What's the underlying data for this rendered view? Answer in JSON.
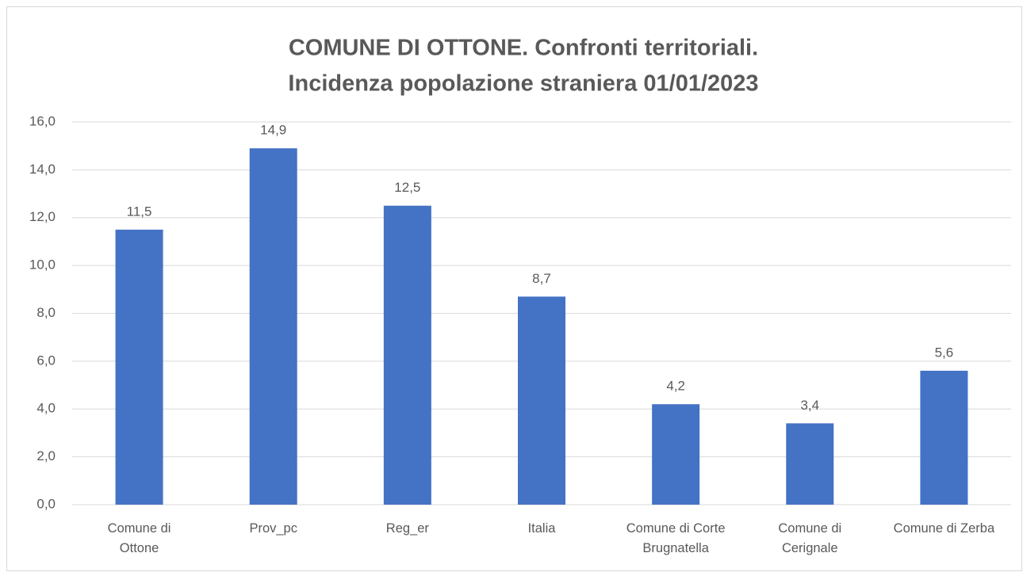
{
  "chart_data": {
    "type": "bar",
    "title": [
      "COMUNE DI OTTONE. Confronti territoriali.",
      "Incidenza popolazione straniera 01/01/2023"
    ],
    "categories": [
      "Comune di\nOttone",
      "Prov_pc",
      "Reg_er",
      "Italia",
      "Comune di Corte\nBrugnatella",
      "Comune di\nCerignale",
      "Comune di Zerba"
    ],
    "values": [
      11.5,
      14.9,
      12.5,
      8.7,
      4.2,
      3.4,
      5.6
    ],
    "value_labels": [
      "11,5",
      "14,9",
      "12,5",
      "8,7",
      "4,2",
      "3,4",
      "5,6"
    ],
    "color": "#4472c4",
    "ylim": [
      0,
      16
    ],
    "yticks": [
      {
        "value": 0,
        "label": "0,0"
      },
      {
        "value": 2,
        "label": "2,0"
      },
      {
        "value": 4,
        "label": "4,0"
      },
      {
        "value": 6,
        "label": "6,0"
      },
      {
        "value": 8,
        "label": "8,0"
      },
      {
        "value": 10,
        "label": "10,0"
      },
      {
        "value": 12,
        "label": "12,0"
      },
      {
        "value": 14,
        "label": "14,0"
      },
      {
        "value": 16,
        "label": "16,0"
      }
    ],
    "grid": true
  }
}
